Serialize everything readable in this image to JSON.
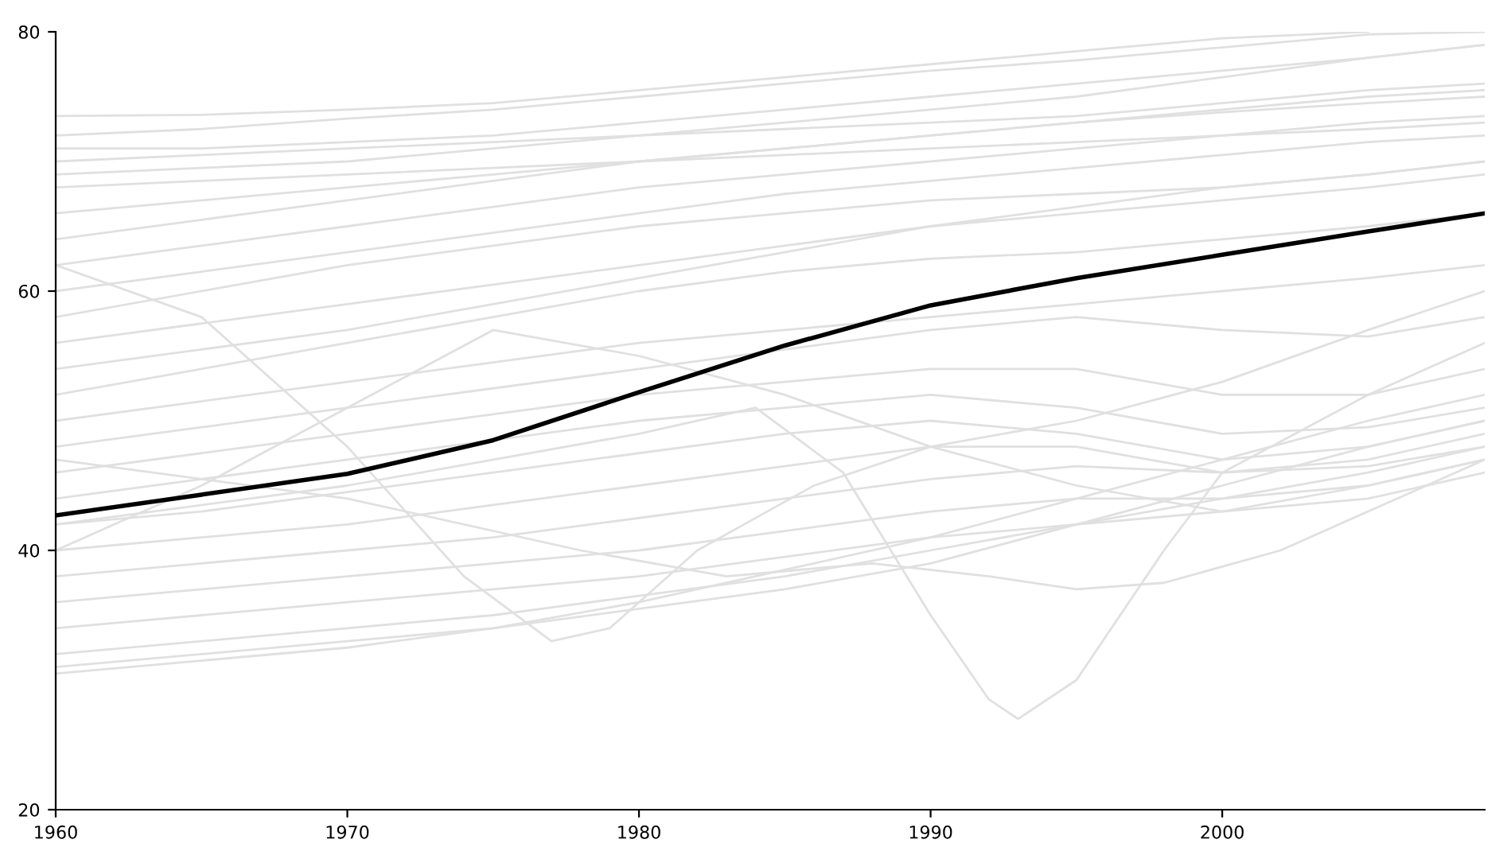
{
  "chart_data": {
    "type": "line",
    "x": [
      1960,
      1965,
      1970,
      1975,
      1980,
      1985,
      1990,
      1995,
      2000,
      2005,
      2009
    ],
    "xlim": [
      1960,
      2009
    ],
    "ylim": [
      20,
      80
    ],
    "xticks": [
      1960,
      1970,
      1980,
      1990,
      2000
    ],
    "yticks": [
      20,
      40,
      60,
      80
    ],
    "grid": false,
    "marker": "none",
    "line_style": "solid",
    "series": [
      {
        "color": "#e0e0e0",
        "values": [
          73.5,
          73.6,
          74,
          74.5,
          75.5,
          76.5,
          77.5,
          78.5,
          79.5,
          80,
          null
        ]
      },
      {
        "color": "#e0e0e0",
        "values": [
          72,
          72.5,
          73.3,
          74,
          75,
          76,
          77,
          77.8,
          78.8,
          79.8,
          80
        ]
      },
      {
        "color": "#e0e0e0",
        "values": [
          71,
          71,
          71.5,
          72,
          73,
          74,
          75,
          76,
          77,
          78,
          79
        ]
      },
      {
        "color": "#e0e0e0",
        "values": [
          70,
          70.5,
          71,
          71.5,
          72,
          72.5,
          73,
          73.5,
          74.5,
          75.5,
          76
        ]
      },
      {
        "color": "#e0e0e0",
        "values": [
          69,
          69.5,
          70,
          71,
          72,
          73,
          74,
          75,
          76.5,
          78,
          79
        ]
      },
      {
        "color": "#e0e0e0",
        "values": [
          68,
          68.5,
          69,
          69.5,
          70,
          70.5,
          71,
          71.5,
          72,
          73,
          73.5
        ]
      },
      {
        "color": "#e0e0e0",
        "values": [
          66,
          67,
          68,
          69,
          70,
          71,
          72,
          73,
          74,
          75,
          75.5
        ]
      },
      {
        "color": "#e0e0e0",
        "values": [
          64,
          65.5,
          67,
          68.5,
          70,
          71,
          72,
          73,
          73.8,
          74.5,
          75
        ]
      },
      {
        "color": "#e0e0e0",
        "values": [
          62,
          63.5,
          65,
          66.5,
          68,
          69,
          70,
          71,
          72,
          72.5,
          73
        ]
      },
      {
        "color": "#e0e0e0",
        "values": [
          60,
          61.5,
          63,
          64.5,
          66,
          67.5,
          68.5,
          69.5,
          70.5,
          71.5,
          72
        ]
      },
      {
        "color": "#e0e0e0",
        "values": [
          58,
          60,
          62,
          63.5,
          65,
          66,
          67,
          67.5,
          68,
          69,
          70
        ]
      },
      {
        "color": "#e0e0e0",
        "values": [
          56,
          57.5,
          59,
          60.5,
          62,
          63.5,
          65,
          66,
          67,
          68,
          69
        ]
      },
      {
        "color": "#e0e0e0",
        "values": [
          54,
          55.5,
          57,
          59,
          61,
          63,
          65,
          66.5,
          68,
          69,
          70
        ]
      },
      {
        "color": "#e0e0e0",
        "values": [
          52,
          54,
          56,
          58,
          60,
          61.5,
          62.5,
          63,
          64,
          65,
          66
        ]
      },
      {
        "color": "#e0e0e0",
        "values": [
          50,
          51.5,
          53,
          54.5,
          56,
          57,
          58,
          59,
          60,
          61,
          62
        ]
      },
      {
        "color": "#e0e0e0",
        "values": [
          48,
          49.5,
          51,
          52.5,
          54,
          55.5,
          57,
          58,
          57,
          56.5,
          58
        ]
      },
      {
        "color": "#e0e0e0",
        "values": [
          46,
          47.5,
          49,
          50.5,
          52,
          53,
          54,
          54,
          52,
          52,
          54
        ]
      },
      {
        "color": "#e0e0e0",
        "values": [
          44,
          45.5,
          47,
          48.5,
          50,
          51,
          52,
          51,
          49,
          49.5,
          51
        ]
      },
      {
        "color": "#e0e0e0",
        "values": [
          42,
          43,
          44.5,
          46,
          47.5,
          49,
          50,
          49,
          47,
          48,
          50
        ]
      },
      {
        "color": "#e0e0e0",
        "values": [
          40,
          41,
          42,
          43.5,
          45,
          46.5,
          48,
          48,
          46,
          47,
          49
        ]
      },
      {
        "color": "#e0e0e0",
        "values": [
          38,
          39,
          40,
          41,
          42.5,
          44,
          45.5,
          46.5,
          46,
          46.5,
          48
        ]
      },
      {
        "color": "#e0e0e0",
        "values": [
          36,
          37,
          38,
          39,
          40,
          41.5,
          43,
          44,
          44,
          45,
          47
        ]
      },
      {
        "color": "#e0e0e0",
        "values": [
          34,
          35,
          36,
          37,
          38,
          39.5,
          41,
          42,
          43,
          45,
          47
        ]
      },
      {
        "color": "#e0e0e0",
        "values": [
          32,
          33,
          34,
          35,
          36.5,
          38,
          40,
          42,
          44,
          46,
          48
        ]
      },
      {
        "color": "#e0e0e0",
        "values": [
          31,
          32,
          33,
          34,
          35.5,
          37,
          39,
          42,
          45,
          48,
          50
        ]
      },
      {
        "color": "#e0e0e0",
        "values": [
          30.5,
          31.5,
          32.5,
          34,
          36,
          38.5,
          41,
          44,
          47,
          50,
          52
        ]
      },
      {
        "color": "#e0e0e0",
        "values": [
          40,
          45,
          51,
          57,
          55,
          52,
          48,
          45,
          43,
          44,
          46
        ]
      },
      {
        "color": "#e0e0e0",
        "x": [
          1960,
          1965,
          1970,
          1974,
          1977,
          1979,
          1982,
          1986,
          1990,
          1995,
          2000,
          2005,
          2009
        ],
        "values": [
          62,
          58,
          48,
          38,
          33,
          34,
          40,
          45,
          48,
          50,
          53,
          57,
          60
        ]
      },
      {
        "color": "#e0e0e0",
        "x": [
          1960,
          1970,
          1980,
          1984,
          1987,
          1990,
          1992,
          1993,
          1995,
          1998,
          2000,
          2005,
          2009
        ],
        "values": [
          42,
          45,
          49,
          51,
          46,
          35,
          28.5,
          27,
          30,
          40,
          46,
          52,
          56
        ]
      },
      {
        "color": "#e0e0e0",
        "x": [
          1960,
          1970,
          1978,
          1983,
          1988,
          1992,
          1995,
          1998,
          2002,
          2005,
          2009
        ],
        "values": [
          47,
          44,
          40,
          38,
          39,
          38,
          37,
          37.5,
          40,
          43,
          47
        ]
      },
      {
        "color": "#000000",
        "values": [
          42.7,
          44.3,
          45.9,
          48.5,
          52.2,
          55.8,
          58.9,
          61,
          62.8,
          64.6,
          66
        ]
      }
    ]
  }
}
